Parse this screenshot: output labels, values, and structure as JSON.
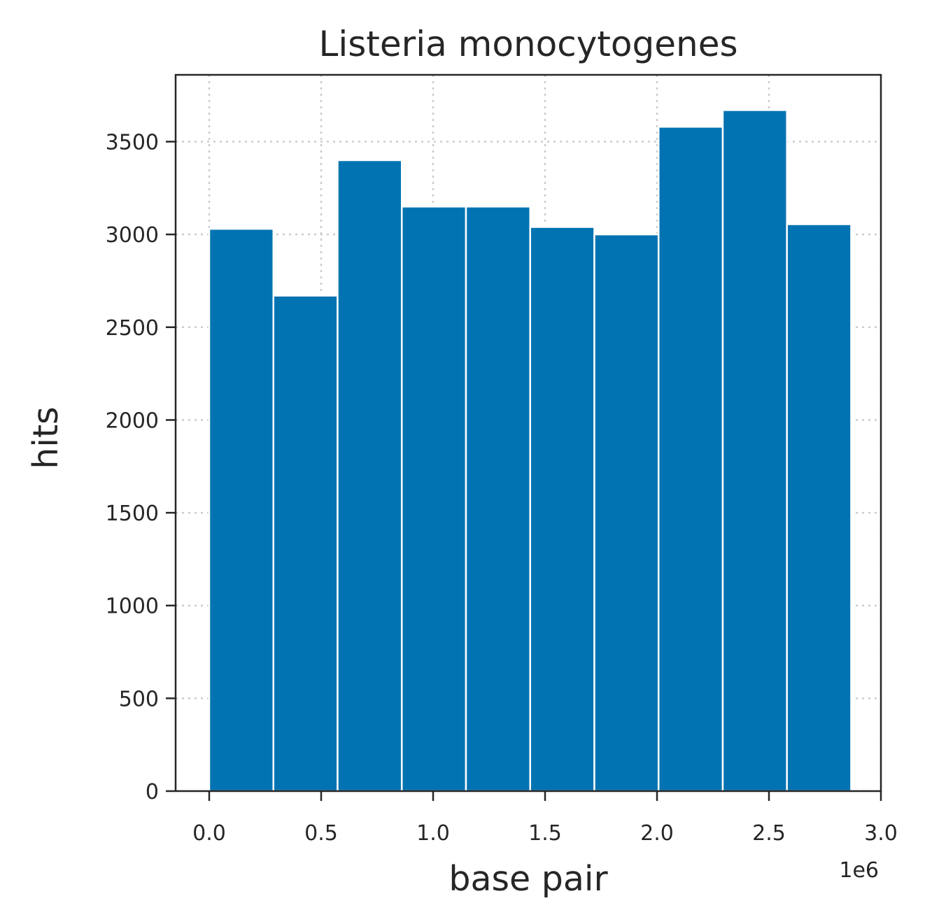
{
  "chart_data": {
    "type": "bar",
    "title": "Listeria monocytogenes",
    "xlabel": "base pair",
    "ylabel": "hits",
    "x_offset_label": "1e6",
    "xlim": [
      -0.15,
      3.0
    ],
    "ylim": [
      0,
      3860
    ],
    "x_ticks": [
      0.0,
      0.5,
      1.0,
      1.5,
      2.0,
      2.5,
      3.0
    ],
    "x_tick_labels": [
      "0.0",
      "0.5",
      "1.0",
      "1.5",
      "2.0",
      "2.5",
      "3.0"
    ],
    "y_ticks": [
      0,
      500,
      1000,
      1500,
      2000,
      2500,
      3000,
      3500
    ],
    "y_tick_labels": [
      "0",
      "500",
      "1000",
      "1500",
      "2000",
      "2500",
      "3000",
      "3500"
    ],
    "bin_edges": [
      0.0,
      0.2867,
      0.5734,
      0.8601,
      1.1468,
      1.4335,
      1.7202,
      2.0069,
      2.2936,
      2.5803,
      2.867
    ],
    "values": [
      3030,
      2670,
      3400,
      3150,
      3150,
      3040,
      3000,
      3580,
      3670,
      3055
    ],
    "grid": true,
    "bar_color": "#0173b2"
  }
}
